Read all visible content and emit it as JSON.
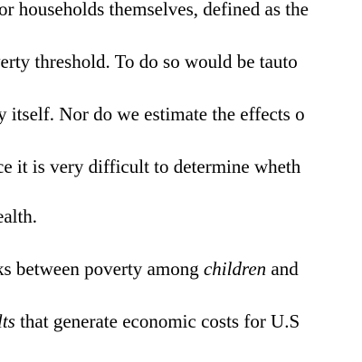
{
  "document": {
    "lines": [
      {
        "text": "or households themselves, defined as the"
      },
      {
        "text": "verty threshold.  To do so would be tauto"
      },
      {
        "text": "y itself. Nor do we estimate the effects o"
      },
      {
        "text": "ce it is very difficult to determine wheth"
      },
      {
        "text": "ealth."
      },
      {
        "before": "ks between poverty among ",
        "italic": "children",
        "after": " and"
      },
      {
        "italic": "lts",
        "after": " that generate economic costs for U.S"
      }
    ]
  }
}
